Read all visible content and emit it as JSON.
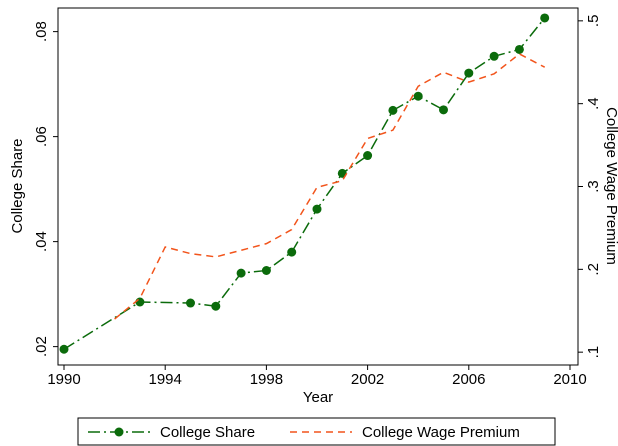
{
  "chart_data": {
    "type": "line",
    "x_label": "Year",
    "y_label": "College Share",
    "y2_label": "College Wage Premium",
    "xlim": [
      1990,
      2010
    ],
    "xticks": [
      1990,
      1994,
      1998,
      2002,
      2006,
      2010
    ],
    "ylim": [
      0.0165,
      0.0845
    ],
    "yticks": [
      {
        "value": 0.02,
        "label": ".02"
      },
      {
        "value": 0.04,
        "label": ".04"
      },
      {
        "value": 0.06,
        "label": ".06"
      },
      {
        "value": 0.08,
        "label": ".08"
      }
    ],
    "y2lim": [
      0.0845,
      0.5155
    ],
    "y2ticks": [
      {
        "value": 0.1,
        "label": ".1"
      },
      {
        "value": 0.2,
        "label": ".2"
      },
      {
        "value": 0.3,
        "label": ".3"
      },
      {
        "value": 0.4,
        "label": ".4"
      },
      {
        "value": 0.5,
        "label": ".5"
      }
    ],
    "series": [
      {
        "name": "College Share",
        "color": "#0b6b0b",
        "dash": "12,4,2,4",
        "markers": true,
        "x": [
          1990,
          1993,
          1995,
          1996,
          1997,
          1998,
          1999,
          2000,
          2001,
          2002,
          2003,
          2004,
          2005,
          2006,
          2007,
          2008,
          2009
        ],
        "values": [
          0.0195,
          0.0285,
          0.0283,
          0.0277,
          0.034,
          0.0345,
          0.038,
          0.0462,
          0.053,
          0.0564,
          0.065,
          0.0677,
          0.0651,
          0.0721,
          0.0753,
          0.0766,
          0.0826
        ]
      },
      {
        "name": "College Wage Premium",
        "color": "#f2541b",
        "dash": "7,5",
        "markers": false,
        "axis": "y2",
        "x": [
          1992,
          1993,
          1994,
          1995,
          1996,
          1997,
          1998,
          1999,
          2000,
          2001,
          2002,
          2003,
          2004,
          2005,
          2006,
          2007,
          2008,
          2009
        ],
        "values": [
          0.14,
          0.165,
          0.227,
          0.219,
          0.215,
          0.223,
          0.231,
          0.248,
          0.299,
          0.307,
          0.358,
          0.368,
          0.421,
          0.438,
          0.426,
          0.436,
          0.46,
          0.444
        ]
      }
    ]
  }
}
